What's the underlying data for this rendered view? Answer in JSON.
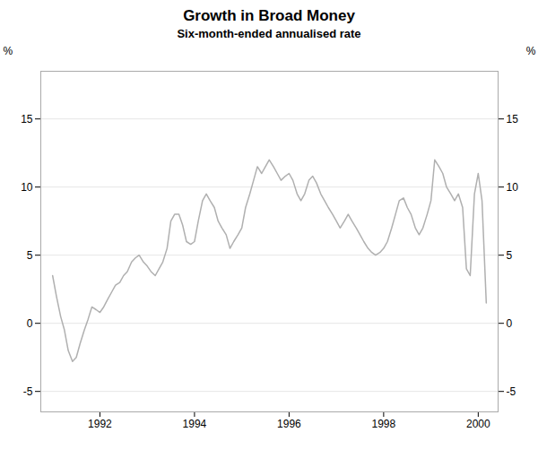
{
  "chart_data": {
    "type": "line",
    "title": "Growth in Broad Money",
    "subtitle": "Six-month-ended annualised rate",
    "ylabel": "%",
    "y2label": "%",
    "color": "#b0b0b0",
    "grid": true,
    "x": [
      1991.0,
      1991.08,
      1991.17,
      1991.25,
      1991.33,
      1991.42,
      1991.5,
      1991.58,
      1991.67,
      1991.75,
      1991.83,
      1991.92,
      1992.0,
      1992.08,
      1992.17,
      1992.25,
      1992.33,
      1992.42,
      1992.5,
      1992.58,
      1992.67,
      1992.75,
      1992.83,
      1992.92,
      1993.0,
      1993.08,
      1993.17,
      1993.25,
      1993.33,
      1993.42,
      1993.5,
      1993.58,
      1993.67,
      1993.75,
      1993.83,
      1993.92,
      1994.0,
      1994.08,
      1994.17,
      1994.25,
      1994.33,
      1994.42,
      1994.5,
      1994.58,
      1994.67,
      1994.75,
      1994.83,
      1994.92,
      1995.0,
      1995.08,
      1995.17,
      1995.25,
      1995.33,
      1995.42,
      1995.5,
      1995.58,
      1995.67,
      1995.75,
      1995.83,
      1995.92,
      1996.0,
      1996.08,
      1996.17,
      1996.25,
      1996.33,
      1996.42,
      1996.5,
      1996.58,
      1996.67,
      1996.75,
      1996.83,
      1996.92,
      1997.0,
      1997.08,
      1997.17,
      1997.25,
      1997.33,
      1997.42,
      1997.5,
      1997.58,
      1997.67,
      1997.75,
      1997.83,
      1997.92,
      1998.0,
      1998.08,
      1998.17,
      1998.25,
      1998.33,
      1998.42,
      1998.5,
      1998.58,
      1998.67,
      1998.75,
      1998.83,
      1998.92,
      1999.0,
      1999.08,
      1999.17,
      1999.25,
      1999.33,
      1999.42,
      1999.5,
      1999.58,
      1999.67,
      1999.75,
      1999.83,
      1999.92,
      2000.0,
      2000.08,
      2000.17
    ],
    "values": [
      3.5,
      2.0,
      0.5,
      -0.5,
      -2.0,
      -2.8,
      -2.5,
      -1.5,
      -0.5,
      0.3,
      1.2,
      1.0,
      0.8,
      1.2,
      1.8,
      2.3,
      2.8,
      3.0,
      3.5,
      3.8,
      4.5,
      4.8,
      5.0,
      4.5,
      4.2,
      3.8,
      3.5,
      4.0,
      4.5,
      5.5,
      7.5,
      8.0,
      8.0,
      7.2,
      6.0,
      5.8,
      6.0,
      7.5,
      9.0,
      9.5,
      9.0,
      8.5,
      7.5,
      7.0,
      6.5,
      5.5,
      6.0,
      6.5,
      7.0,
      8.5,
      9.5,
      10.5,
      11.5,
      11.0,
      11.5,
      12.0,
      11.5,
      11.0,
      10.5,
      10.8,
      11.0,
      10.5,
      9.5,
      9.0,
      9.5,
      10.5,
      10.8,
      10.3,
      9.5,
      9.0,
      8.5,
      8.0,
      7.5,
      7.0,
      7.5,
      8.0,
      7.5,
      7.0,
      6.5,
      6.0,
      5.5,
      5.2,
      5.0,
      5.2,
      5.5,
      6.0,
      7.0,
      8.0,
      9.0,
      9.2,
      8.5,
      8.0,
      7.0,
      6.5,
      7.0,
      8.0,
      9.0,
      12.0,
      11.5,
      11.0,
      10.0,
      9.5,
      9.0,
      9.5,
      8.5,
      4.0,
      3.5,
      9.5,
      11.0,
      9.0,
      1.5
    ],
    "xlim": [
      1990.75,
      2000.42
    ],
    "xticks": [
      1992,
      1994,
      1996,
      1998,
      2000
    ],
    "ylim": [
      -6.5,
      18.5
    ],
    "yticks": [
      -5,
      0,
      5,
      10,
      15
    ],
    "y2lim": [
      -6.5,
      18.5
    ],
    "y2ticks": [
      -5,
      0,
      5,
      10,
      15
    ]
  }
}
